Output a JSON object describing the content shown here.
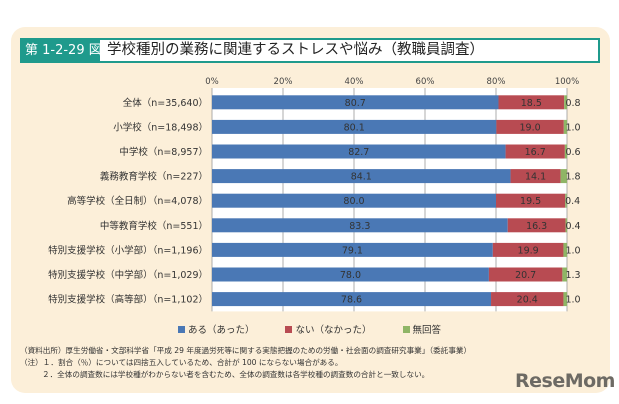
{
  "figure": {
    "number": "第 1-2-29 図",
    "title": "学校種別の業務に関連するストレスや悩み（教職員調査）"
  },
  "colors": {
    "panel_bg": "#fcefd9",
    "accent": "#1f9a8c",
    "series_aru": "#4a78b5",
    "series_nai": "#b84b52",
    "series_mukaito": "#8fb566"
  },
  "chart_data": {
    "type": "bar",
    "orientation": "horizontal",
    "stacked": true,
    "title": "学校種別の業務に関連するストレスや悩み（教職員調査）",
    "xlabel": "",
    "ylabel": "",
    "xlim": [
      0,
      100
    ],
    "x_ticks": [
      "0%",
      "20%",
      "40%",
      "60%",
      "80%",
      "100%"
    ],
    "grid": true,
    "legend_position": "bottom",
    "categories": [
      "全体（n=35,640）",
      "小学校（n=18,498）",
      "中学校（n=8,957）",
      "義務教育学校（n=227）",
      "高等学校（全日制）（n=4,078）",
      "中等教育学校（n=551）",
      "特別支援学校（小学部）（n=1,196）",
      "特別支援学校（中学部）（n=1,029）",
      "特別支援学校（高等部）（n=1,102）"
    ],
    "series": [
      {
        "name": "ある（あった）",
        "color": "#4a78b5",
        "values": [
          80.7,
          80.1,
          82.7,
          84.1,
          80.0,
          83.3,
          79.1,
          78.0,
          78.6
        ]
      },
      {
        "name": "ない（なかった）",
        "color": "#b84b52",
        "values": [
          18.5,
          19.0,
          16.7,
          14.1,
          19.5,
          16.3,
          19.9,
          20.7,
          20.4
        ]
      },
      {
        "name": "無回答",
        "color": "#8fb566",
        "values": [
          0.8,
          1.0,
          0.6,
          1.8,
          0.4,
          0.4,
          1.0,
          1.3,
          1.0
        ]
      }
    ]
  },
  "notes": {
    "source": "（資料出所）厚生労働省・文部科学省「平成 29 年度過労死等に関する実態把握のための労働・社会面の調査研究事業」（委託事業）",
    "note1": "（注）１．割合（％）については四捨五入しているため、合計が 100 にならない場合がある。",
    "note2": "２．全体の調査数には学校種がわからない者を含むため、全体の調査数は各学校種の調査数の合計と一致しない。"
  },
  "watermark": "ReseMom"
}
